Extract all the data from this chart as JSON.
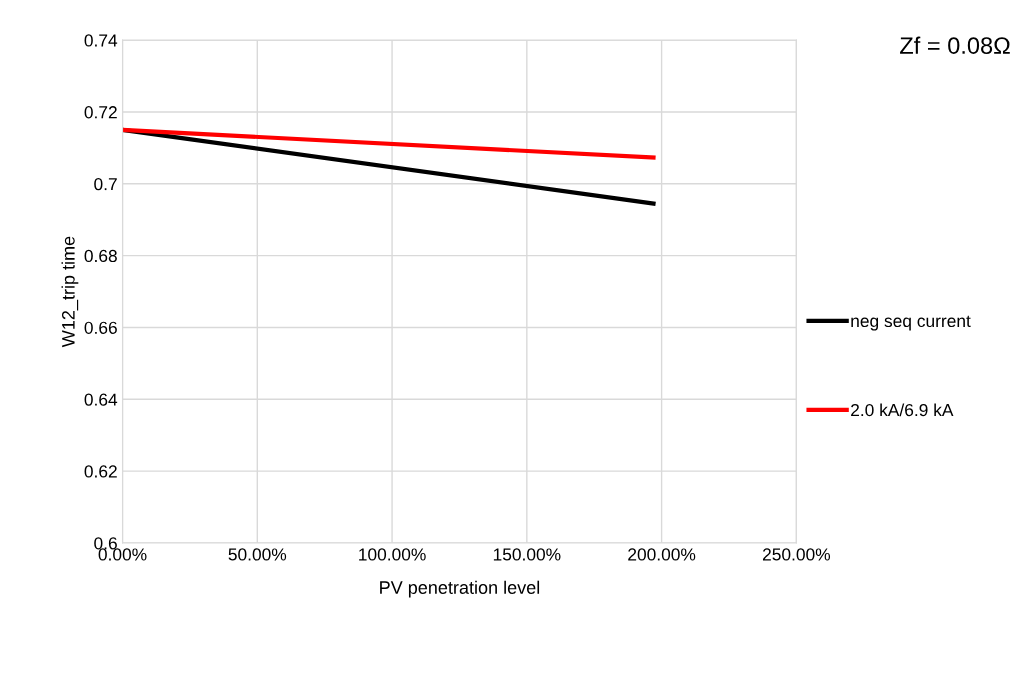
{
  "chart_data": {
    "type": "line",
    "xlabel": "PV penetration level",
    "ylabel": "W12_trip time",
    "annotations": [
      "Zf = 0.08Ω"
    ],
    "series": [
      {
        "name": "neg seq current",
        "color": "#000000",
        "values": [
          0.715,
          0.6945
        ]
      },
      {
        "name": "2.0 kA/6.9 kA",
        "color": "#ff0000",
        "values": [
          0.715,
          0.7073
        ]
      }
    ],
    "x": [
      0,
      197
    ],
    "xlim": [
      0,
      250
    ],
    "xticks": [
      {
        "value": 0,
        "label": "0.00%"
      },
      {
        "value": 50,
        "label": "50.00%"
      },
      {
        "value": 100,
        "label": "100.00%"
      },
      {
        "value": 150,
        "label": "150.00%"
      },
      {
        "value": 200,
        "label": "200.00%"
      },
      {
        "value": 250,
        "label": "250.00%"
      }
    ],
    "ylim": [
      0.6,
      0.74
    ],
    "yticks": [
      0.6,
      0.62,
      0.64,
      0.66,
      0.68,
      0.7,
      0.72,
      0.74
    ],
    "grid": true,
    "legend": "right",
    "marker": "none",
    "line_style": "solid"
  }
}
